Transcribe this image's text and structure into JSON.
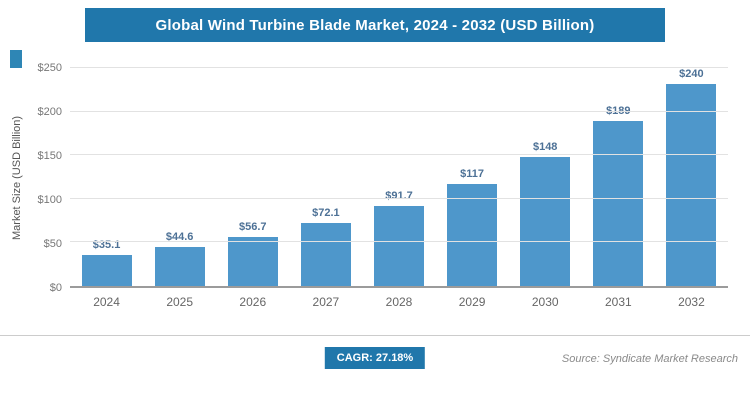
{
  "title": "Global Wind Turbine Blade Market, 2024 - 2032 (USD Billion)",
  "chart_data": {
    "type": "bar",
    "title": "Global Wind Turbine Blade Market, 2024 - 2032 (USD Billion)",
    "categories": [
      "2024",
      "2025",
      "2026",
      "2027",
      "2028",
      "2029",
      "2030",
      "2031",
      "2032"
    ],
    "values": [
      35.1,
      44.6,
      56.7,
      72.1,
      91.7,
      117,
      148,
      189,
      240
    ],
    "value_labels": [
      "$35.1",
      "$44.6",
      "$56.7",
      "$72.1",
      "$91.7",
      "$117",
      "$148",
      "$189",
      "$240"
    ],
    "xlabel": "",
    "ylabel": "Market Size (USD Billion)",
    "ylim": [
      0,
      250
    ],
    "yticks": [
      0,
      50,
      100,
      150,
      200,
      250
    ],
    "ytick_labels": [
      "$0",
      "$50",
      "$100",
      "$150",
      "$200",
      "$250"
    ],
    "grid": true,
    "legend": false,
    "bar_color": "#4e97cb",
    "label_color": "#4d7196"
  },
  "footer": {
    "cagr_label": "CAGR: 27.18%",
    "source": "Source: Syndicate Market Research"
  },
  "colors": {
    "header_bg": "#2077ab",
    "accent": "#2e86b5",
    "gridline": "#e2e2e2"
  }
}
